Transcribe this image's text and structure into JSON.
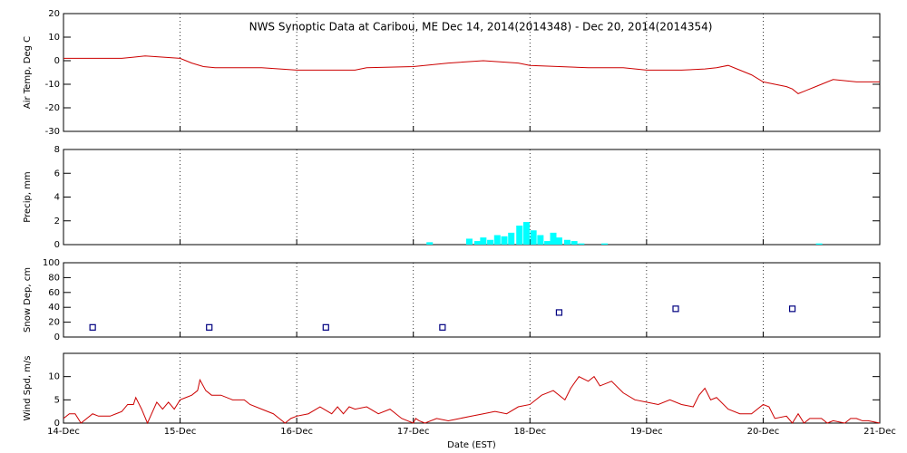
{
  "chart_data": [
    {
      "type": "line",
      "title": "NWS Synoptic Data at Caribou, ME    Dec 14, 2014(2014348) - Dec 20, 2014(2014354)",
      "ylabel": "Air Temp, Deg C",
      "color": "#cc0000",
      "x": [
        0,
        0.5,
        0.6,
        0.7,
        1.0,
        1.1,
        1.2,
        1.3,
        1.7,
        2.0,
        2.5,
        2.6,
        3.0,
        3.3,
        3.6,
        3.9,
        4.0,
        4.5,
        4.8,
        5.0,
        5.3,
        5.5,
        5.6,
        5.7,
        5.8,
        5.9,
        6.0,
        6.1,
        6.2,
        6.25,
        6.3,
        6.35,
        6.45,
        6.5,
        6.6,
        6.8,
        7.0
      ],
      "values": [
        1,
        1,
        1.5,
        2,
        1,
        -1,
        -2.5,
        -3,
        -3,
        -4,
        -4,
        -3,
        -2.5,
        -1,
        0,
        -1,
        -2,
        -3,
        -3,
        -4,
        -4,
        -3.5,
        -3,
        -2,
        -4,
        -6,
        -9,
        -10,
        -11,
        -12,
        -14,
        -13,
        -11,
        -10,
        -8,
        -9,
        -9
      ],
      "xlim": [
        0,
        7
      ],
      "xticks": [
        0,
        1,
        2,
        3,
        4,
        5,
        6,
        7
      ],
      "ylim": [
        -30,
        20
      ],
      "yticks": [
        -30,
        -20,
        -10,
        0,
        10,
        20
      ],
      "grid": true
    },
    {
      "type": "bar",
      "ylabel": "Precip, mm",
      "color": "#00ffff",
      "x": [
        3.14,
        3.48,
        3.55,
        3.6,
        3.66,
        3.72,
        3.78,
        3.84,
        3.91,
        3.97,
        4.03,
        4.09,
        4.15,
        4.2,
        4.25,
        4.32,
        4.38,
        4.44,
        4.64,
        6.48
      ],
      "values": [
        0.2,
        0.5,
        0.3,
        0.6,
        0.4,
        0.8,
        0.7,
        1.0,
        1.6,
        1.9,
        1.2,
        0.8,
        0.3,
        1.0,
        0.6,
        0.4,
        0.3,
        0.1,
        0.1,
        0.1
      ],
      "xlim": [
        0,
        7
      ],
      "xticks": [
        0,
        1,
        2,
        3,
        4,
        5,
        6,
        7
      ],
      "ylim": [
        0,
        8
      ],
      "yticks": [
        0,
        2,
        4,
        6,
        8
      ],
      "grid": true
    },
    {
      "type": "scatter",
      "ylabel": "Snow Dep, cm",
      "color": "#000080",
      "x": [
        0.25,
        1.25,
        2.25,
        3.25,
        4.25,
        5.25,
        6.25
      ],
      "values": [
        13,
        13,
        13,
        13,
        33,
        38,
        38
      ],
      "xlim": [
        0,
        7
      ],
      "xticks": [
        0,
        1,
        2,
        3,
        4,
        5,
        6,
        7
      ],
      "ylim": [
        0,
        100
      ],
      "yticks": [
        0,
        20,
        40,
        60,
        80,
        100
      ],
      "grid": true
    },
    {
      "type": "line",
      "ylabel": "Wind Spd, m/s",
      "xlabel": "Date (EST)",
      "color": "#cc0000",
      "x": [
        0,
        0.05,
        0.1,
        0.15,
        0.25,
        0.3,
        0.4,
        0.45,
        0.5,
        0.55,
        0.6,
        0.62,
        0.67,
        0.72,
        0.8,
        0.85,
        0.9,
        0.95,
        1.0,
        1.05,
        1.1,
        1.15,
        1.17,
        1.22,
        1.27,
        1.35,
        1.45,
        1.55,
        1.6,
        1.7,
        1.8,
        1.85,
        1.9,
        1.95,
        2.0,
        2.1,
        2.2,
        2.3,
        2.35,
        2.4,
        2.45,
        2.5,
        2.6,
        2.7,
        2.8,
        2.9,
        2.95,
        3.0,
        3.02,
        3.05,
        3.1,
        3.2,
        3.3,
        3.4,
        3.5,
        3.6,
        3.7,
        3.8,
        3.9,
        4.0,
        4.1,
        4.2,
        4.3,
        4.35,
        4.42,
        4.5,
        4.55,
        4.6,
        4.7,
        4.8,
        4.9,
        5.0,
        5.1,
        5.2,
        5.3,
        5.4,
        5.45,
        5.5,
        5.55,
        5.6,
        5.7,
        5.8,
        5.9,
        6.0,
        6.05,
        6.1,
        6.2,
        6.25,
        6.3,
        6.35,
        6.4,
        6.5,
        6.55,
        6.6,
        6.7,
        6.75,
        6.8,
        6.85,
        6.9,
        7.0
      ],
      "values": [
        1,
        2,
        2,
        0,
        2,
        1.5,
        1.5,
        2,
        2.5,
        4,
        4,
        5.5,
        3,
        0,
        4.5,
        3,
        4.5,
        3,
        5,
        5.5,
        6,
        7,
        9.3,
        7,
        6,
        6,
        5,
        5,
        4,
        3,
        2,
        1,
        0,
        1,
        1.5,
        2,
        3.5,
        2,
        3.5,
        2,
        3.5,
        3,
        3.5,
        2,
        3,
        1,
        0.5,
        0,
        1,
        0.5,
        0,
        1,
        0.5,
        1,
        1.5,
        2,
        2.5,
        2,
        3.5,
        4,
        6,
        7,
        5,
        7.5,
        10,
        9,
        10,
        8,
        9,
        6.5,
        5,
        4.5,
        4,
        5,
        4,
        3.5,
        6,
        7.5,
        5,
        5.5,
        3,
        2,
        2,
        4,
        3.5,
        1,
        1.5,
        0,
        2,
        0,
        1,
        1,
        0,
        0.5,
        0,
        1,
        1,
        0.5,
        0.5,
        0
      ],
      "xlim": [
        0,
        7
      ],
      "xticks": [
        {
          "value": 0,
          "label": "14-Dec"
        },
        {
          "value": 1,
          "label": "15-Dec"
        },
        {
          "value": 2,
          "label": "16-Dec"
        },
        {
          "value": 3,
          "label": "17-Dec"
        },
        {
          "value": 4,
          "label": "18-Dec"
        },
        {
          "value": 5,
          "label": "19-Dec"
        },
        {
          "value": 6,
          "label": "20-Dec"
        },
        {
          "value": 7,
          "label": "21-Dec"
        }
      ],
      "ylim": [
        0,
        15
      ],
      "yticks": [
        0,
        5,
        10
      ],
      "grid": true
    }
  ]
}
